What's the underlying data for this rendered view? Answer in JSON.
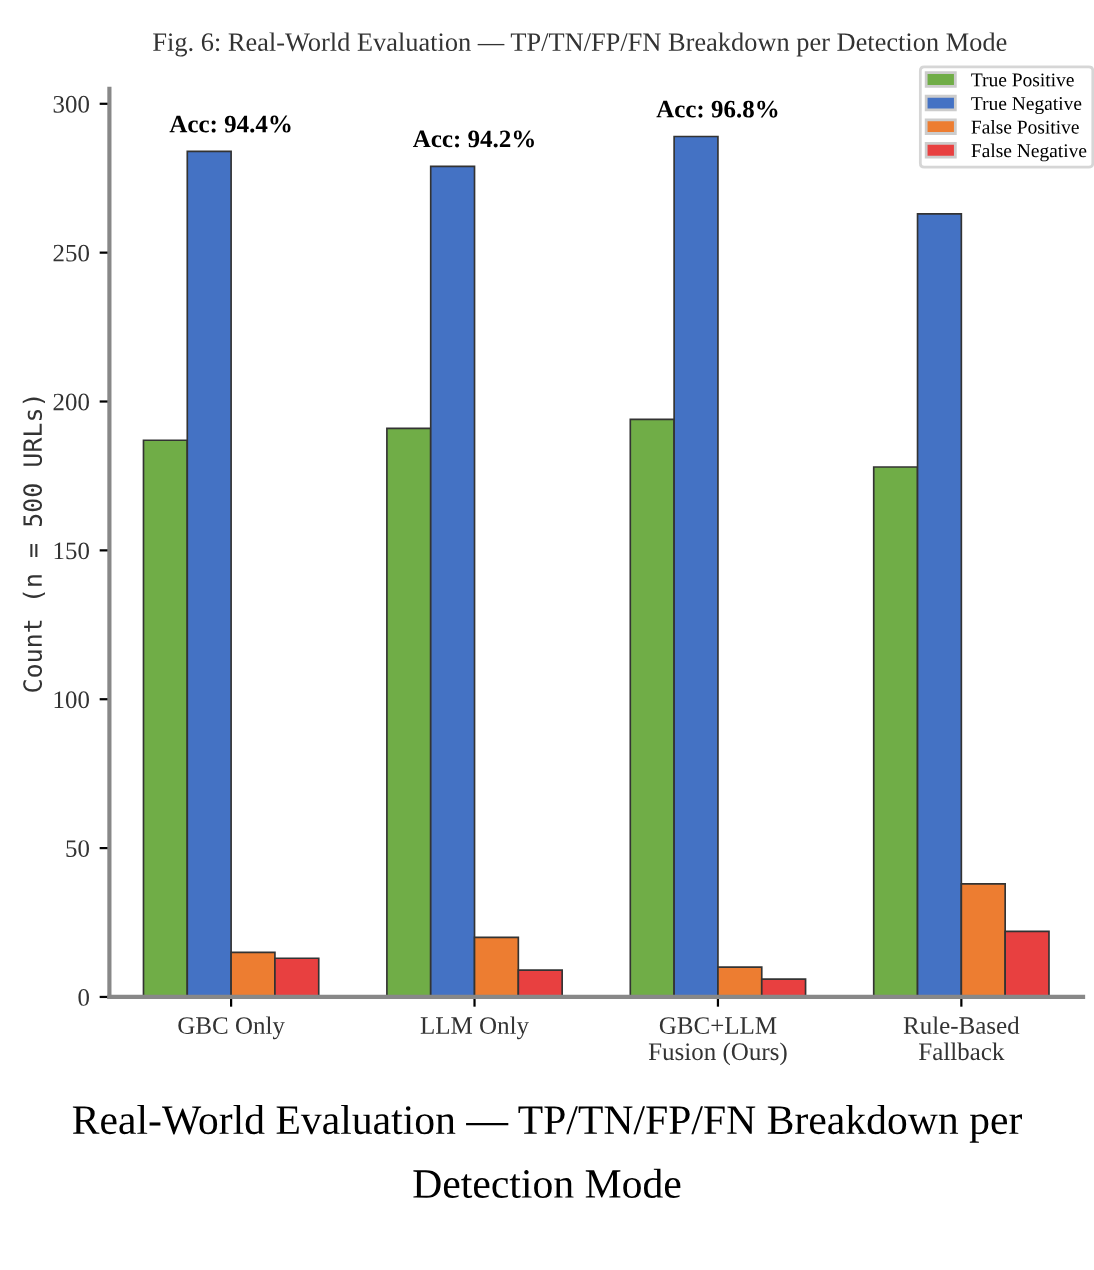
{
  "chart_data": {
    "type": "bar",
    "title": "Fig. 6: Real-World Evaluation — TP/TN/FP/FN Breakdown per Detection Mode",
    "ylabel": "Count (n = 500 URLs)",
    "categories": [
      "GBC Only",
      "LLM Only",
      "GBC+LLM\nFusion (Ours)",
      "Rule-Based\nFallback"
    ],
    "series": [
      {
        "name": "True Positive",
        "color": "#70ad47",
        "values": [
          187,
          191,
          194,
          178
        ]
      },
      {
        "name": "True Negative",
        "color": "#4472c4",
        "values": [
          284,
          279,
          289,
          263
        ]
      },
      {
        "name": "False Positive",
        "color": "#ed7d31",
        "values": [
          15,
          20,
          10,
          38
        ]
      },
      {
        "name": "False Negative",
        "color": "#e84040",
        "values": [
          13,
          9,
          6,
          22
        ]
      }
    ],
    "annotations": [
      {
        "text": "Acc: 94.4%",
        "x": "GBC Only",
        "y": 284
      },
      {
        "text": "Acc: 94.2%",
        "x": "LLM Only",
        "y": 279
      },
      {
        "text": "Acc: 96.8%",
        "x": "GBC+LLM\nFusion (Ours)",
        "y": 289
      },
      "Real-World Evaluation — TP/TN/FP/FN Breakdown per Detection Mode"
    ],
    "ylim": [
      0,
      305
    ],
    "yticks": [
      0,
      50,
      100,
      150,
      200,
      250,
      300
    ],
    "legend": "top right",
    "grid": false
  }
}
